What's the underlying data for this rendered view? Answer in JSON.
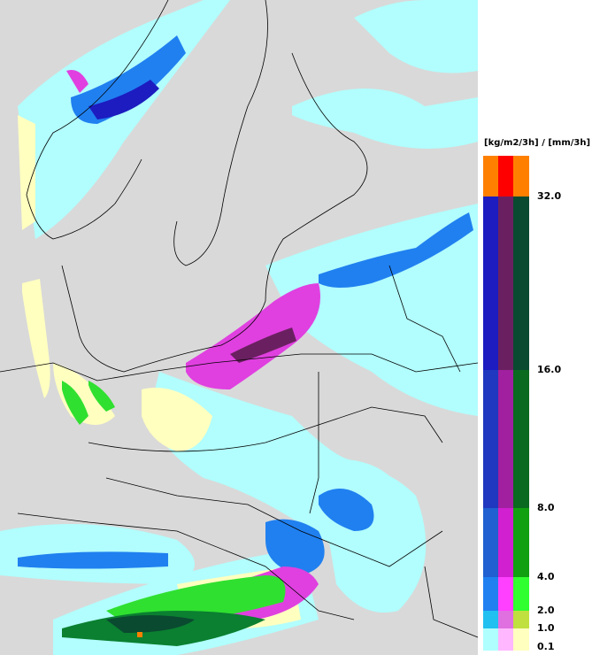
{
  "legend": {
    "title": "[kg/m2/3h] / [mm/3h]",
    "ticks": [
      "32.0",
      "16.0",
      "8.0",
      "4.0",
      "2.0",
      "1.0",
      "0.1"
    ]
  }
}
